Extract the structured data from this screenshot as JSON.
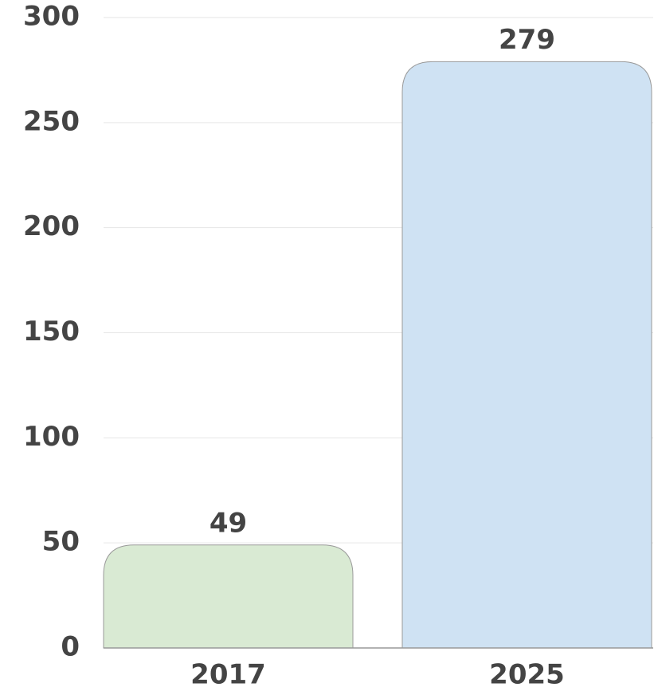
{
  "chart_data": {
    "type": "bar",
    "categories": [
      "2017",
      "2025"
    ],
    "values": [
      49,
      279
    ],
    "colors": [
      "#d9ead3",
      "#cfe2f3"
    ],
    "ylim": [
      0,
      300
    ],
    "yticks": [
      0,
      50,
      100,
      150,
      200,
      250,
      300
    ],
    "grid": true
  }
}
